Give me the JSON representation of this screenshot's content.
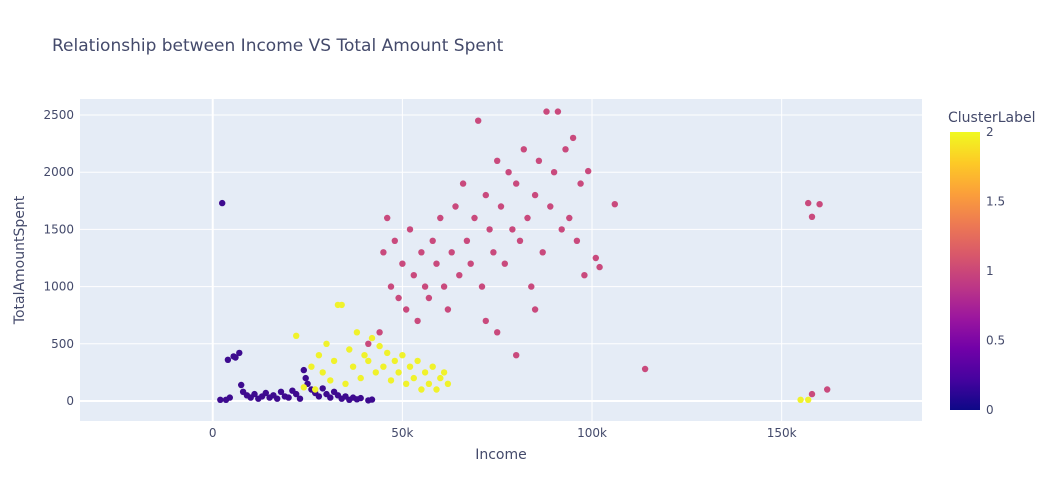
{
  "chart_data": {
    "type": "scatter",
    "title": "Relationship between Income VS Total Amount Spent",
    "xlabel": "Income",
    "ylabel": "TotalAmountSpent",
    "xlim": [
      -35000,
      187000
    ],
    "ylim": [
      -175,
      2640
    ],
    "xticks": [
      0,
      50000,
      100000,
      150000
    ],
    "xtick_labels": [
      "0",
      "50k",
      "100k",
      "150k"
    ],
    "yticks": [
      0,
      500,
      1000,
      1500,
      2000,
      2500
    ],
    "ytick_labels": [
      "0",
      "500",
      "1000",
      "1500",
      "2000",
      "2500"
    ],
    "grid": true,
    "colorbar": {
      "title": "ClusterLabel",
      "min": 0,
      "max": 2,
      "ticks": [
        0,
        0.5,
        1,
        1.5,
        2
      ],
      "tick_labels": [
        "0",
        "0.5",
        "1",
        "1.5",
        "2"
      ],
      "colorscale": [
        "#0d0887",
        "#46039f",
        "#7201a8",
        "#9c179e",
        "#bd3786",
        "#d8576b",
        "#ed7953",
        "#fb9f3a",
        "#fdca26",
        "#f0f921"
      ]
    },
    "series": [
      {
        "cluster": 0,
        "color": "#3d0a8f",
        "points": [
          [
            2000,
            10
          ],
          [
            2500,
            1730
          ],
          [
            3500,
            10
          ],
          [
            4500,
            30
          ],
          [
            4000,
            360
          ],
          [
            5500,
            390
          ],
          [
            7000,
            420
          ],
          [
            6000,
            380
          ],
          [
            7500,
            140
          ],
          [
            8000,
            80
          ],
          [
            9000,
            50
          ],
          [
            10000,
            30
          ],
          [
            11000,
            60
          ],
          [
            12000,
            20
          ],
          [
            13000,
            40
          ],
          [
            14000,
            70
          ],
          [
            15000,
            30
          ],
          [
            16000,
            50
          ],
          [
            17000,
            20
          ],
          [
            18000,
            80
          ],
          [
            19000,
            40
          ],
          [
            20000,
            30
          ],
          [
            21000,
            90
          ],
          [
            22000,
            60
          ],
          [
            23000,
            20
          ],
          [
            24000,
            270
          ],
          [
            24500,
            200
          ],
          [
            25000,
            150
          ],
          [
            26000,
            100
          ],
          [
            27000,
            70
          ],
          [
            28000,
            40
          ],
          [
            29000,
            110
          ],
          [
            30000,
            60
          ],
          [
            31000,
            30
          ],
          [
            32000,
            80
          ],
          [
            33000,
            50
          ],
          [
            34000,
            20
          ],
          [
            35000,
            40
          ],
          [
            36000,
            10
          ],
          [
            37000,
            30
          ],
          [
            38000,
            15
          ],
          [
            39000,
            25
          ],
          [
            41000,
            5
          ],
          [
            42000,
            12
          ]
        ]
      },
      {
        "cluster": 1,
        "color": "#c94a7d",
        "points": [
          [
            41000,
            500
          ],
          [
            44000,
            600
          ],
          [
            45000,
            1300
          ],
          [
            46000,
            1600
          ],
          [
            47000,
            1000
          ],
          [
            48000,
            1400
          ],
          [
            49000,
            900
          ],
          [
            50000,
            1200
          ],
          [
            51000,
            800
          ],
          [
            52000,
            1500
          ],
          [
            53000,
            1100
          ],
          [
            54000,
            700
          ],
          [
            55000,
            1300
          ],
          [
            56000,
            1000
          ],
          [
            57000,
            900
          ],
          [
            58000,
            1400
          ],
          [
            59000,
            1200
          ],
          [
            60000,
            1600
          ],
          [
            61000,
            1000
          ],
          [
            62000,
            800
          ],
          [
            63000,
            1300
          ],
          [
            64000,
            1700
          ],
          [
            65000,
            1100
          ],
          [
            66000,
            1900
          ],
          [
            67000,
            1400
          ],
          [
            68000,
            1200
          ],
          [
            69000,
            1600
          ],
          [
            70000,
            2450
          ],
          [
            71000,
            1000
          ],
          [
            72000,
            1800
          ],
          [
            73000,
            1500
          ],
          [
            74000,
            1300
          ],
          [
            75000,
            2100
          ],
          [
            76000,
            1700
          ],
          [
            77000,
            1200
          ],
          [
            78000,
            2000
          ],
          [
            79000,
            1500
          ],
          [
            80000,
            1900
          ],
          [
            81000,
            1400
          ],
          [
            82000,
            2200
          ],
          [
            83000,
            1600
          ],
          [
            84000,
            1000
          ],
          [
            85000,
            1800
          ],
          [
            86000,
            2100
          ],
          [
            87000,
            1300
          ],
          [
            88000,
            2530
          ],
          [
            89000,
            1700
          ],
          [
            90000,
            2000
          ],
          [
            91000,
            2530
          ],
          [
            92000,
            1500
          ],
          [
            93000,
            2200
          ],
          [
            94000,
            1600
          ],
          [
            95000,
            2300
          ],
          [
            96000,
            1400
          ],
          [
            97000,
            1900
          ],
          [
            98000,
            1100
          ],
          [
            99000,
            2010
          ],
          [
            101000,
            1250
          ],
          [
            102000,
            1170
          ],
          [
            106000,
            1720
          ],
          [
            114000,
            280
          ],
          [
            157000,
            1730
          ],
          [
            158000,
            1610
          ],
          [
            160000,
            1720
          ],
          [
            158000,
            60
          ],
          [
            162000,
            100
          ],
          [
            80000,
            400
          ],
          [
            75000,
            600
          ],
          [
            85000,
            800
          ],
          [
            72000,
            700
          ]
        ]
      },
      {
        "cluster": 2,
        "color": "#f0f22b",
        "points": [
          [
            22000,
            570
          ],
          [
            24000,
            120
          ],
          [
            26000,
            300
          ],
          [
            27000,
            100
          ],
          [
            28000,
            400
          ],
          [
            29000,
            250
          ],
          [
            30000,
            500
          ],
          [
            31000,
            180
          ],
          [
            32000,
            350
          ],
          [
            33000,
            840
          ],
          [
            34000,
            840
          ],
          [
            35000,
            150
          ],
          [
            36000,
            450
          ],
          [
            37000,
            300
          ],
          [
            38000,
            600
          ],
          [
            39000,
            200
          ],
          [
            40000,
            400
          ],
          [
            41000,
            350
          ],
          [
            42000,
            550
          ],
          [
            43000,
            250
          ],
          [
            44000,
            480
          ],
          [
            45000,
            300
          ],
          [
            46000,
            420
          ],
          [
            47000,
            180
          ],
          [
            48000,
            350
          ],
          [
            49000,
            250
          ],
          [
            50000,
            400
          ],
          [
            51000,
            150
          ],
          [
            52000,
            300
          ],
          [
            53000,
            200
          ],
          [
            54000,
            350
          ],
          [
            55000,
            100
          ],
          [
            56000,
            250
          ],
          [
            57000,
            150
          ],
          [
            58000,
            300
          ],
          [
            59000,
            100
          ],
          [
            60000,
            200
          ],
          [
            61000,
            250
          ],
          [
            62000,
            150
          ],
          [
            155000,
            10
          ],
          [
            157000,
            10
          ]
        ]
      }
    ]
  }
}
